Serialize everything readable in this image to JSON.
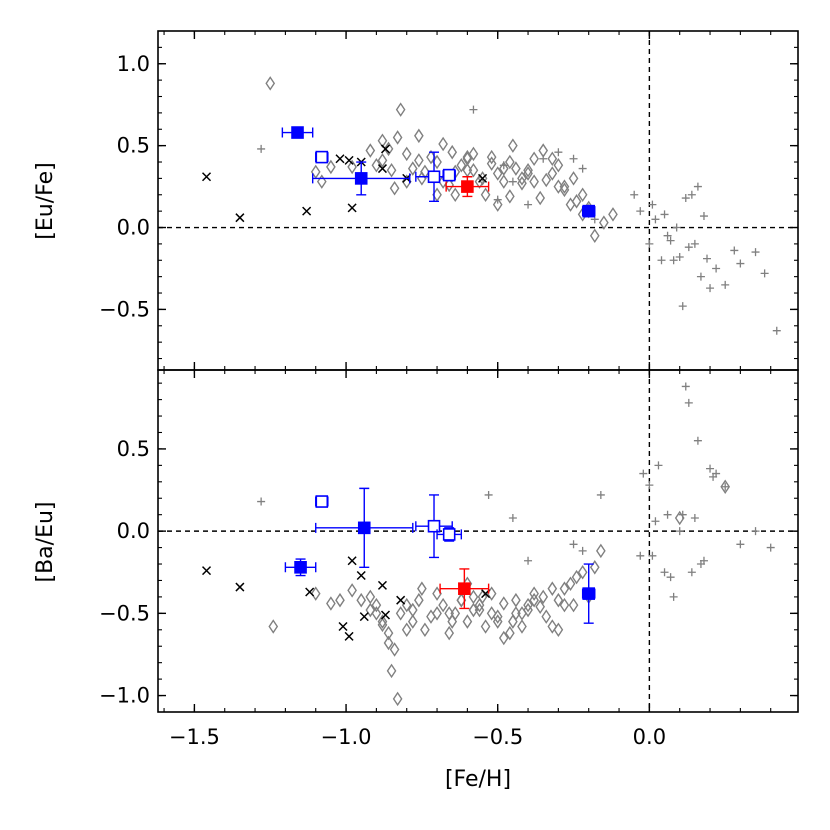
{
  "chart_data": {
    "type": "scatter",
    "xlabel": "[Fe/H]",
    "xlim": [
      -1.62,
      0.49
    ],
    "xticks": [
      -1.5,
      -1.0,
      -0.5,
      0.0
    ],
    "xtick_labels": [
      "−1.5",
      "−1.0",
      "−0.5",
      "0.0"
    ],
    "panels": [
      {
        "id": "top",
        "ylabel": "[Eu/Fe]",
        "ylim": [
          -0.87,
          1.2
        ],
        "yticks": [
          -0.5,
          0.0,
          0.5,
          1.0
        ],
        "ytick_labels": [
          "−0.5",
          "0.0",
          "0.5",
          "1.0"
        ],
        "series": [
          {
            "name": "grey-diamonds",
            "marker": "diamond",
            "color": "#808080",
            "x": [
              -1.25,
              -1.1,
              -1.08,
              -1.05,
              -0.98,
              -0.95,
              -0.92,
              -0.88,
              -0.85,
              -0.8,
              -0.83,
              -0.78,
              -0.75,
              -0.72,
              -0.7,
              -0.68,
              -0.65,
              -0.62,
              -0.6,
              -0.58,
              -0.55,
              -0.52,
              -0.5,
              -0.48,
              -0.45,
              -0.42,
              -0.4,
              -0.38,
              -0.35,
              -0.32,
              -0.3,
              -0.28,
              -0.25,
              -0.22,
              -0.2,
              -0.18,
              -0.15,
              -0.12,
              -0.88,
              -0.82,
              -0.8,
              -0.76,
              -0.7,
              -0.66,
              -0.6,
              -0.56,
              -0.5,
              -0.46,
              -0.42,
              -0.36,
              -0.3,
              -0.26,
              -0.22,
              -0.9,
              -0.86,
              -0.84,
              -0.76,
              -0.68,
              -0.64,
              -0.58,
              -0.54,
              -0.44,
              -0.38,
              -0.32,
              -0.28,
              -0.64,
              -0.52,
              -0.48,
              -0.4,
              -0.34,
              -0.24,
              -0.2,
              -0.6,
              -0.46,
              -0.74
            ],
            "y": [
              0.88,
              0.34,
              0.28,
              0.37,
              0.37,
              0.3,
              0.47,
              0.41,
              0.35,
              0.45,
              0.55,
              0.36,
              0.3,
              0.43,
              0.4,
              0.28,
              0.46,
              0.38,
              0.42,
              0.35,
              0.3,
              0.39,
              0.33,
              0.36,
              0.5,
              0.27,
              0.35,
              0.42,
              0.47,
              0.33,
              0.38,
              0.25,
              0.3,
              0.2,
              0.12,
              -0.05,
              0.03,
              0.08,
              0.53,
              0.72,
              0.28,
              0.56,
              0.2,
              0.26,
              0.43,
              0.28,
              0.14,
              0.4,
              0.3,
              0.18,
              0.25,
              0.14,
              0.08,
              0.38,
              0.48,
              0.24,
              0.41,
              0.51,
              0.2,
              0.45,
              0.2,
              0.36,
              0.28,
              0.42,
              0.23,
              0.34,
              0.43,
              0.28,
              0.33,
              0.29,
              0.16,
              0.1,
              0.35,
              0.19,
              0.34
            ]
          },
          {
            "name": "grey-plus",
            "marker": "plus",
            "color": "#808080",
            "x": [
              -1.28,
              -0.58,
              -0.5,
              -0.48,
              -0.45,
              -0.4,
              -0.35,
              -0.3,
              -0.25,
              -0.22,
              -0.18,
              -0.05,
              0.0,
              0.02,
              0.05,
              0.06,
              0.08,
              0.1,
              0.12,
              0.13,
              0.14,
              0.15,
              0.16,
              0.18,
              0.2,
              0.22,
              0.25,
              0.28,
              0.3,
              0.35,
              0.38,
              0.42,
              -0.03,
              0.01,
              0.07,
              0.17,
              0.11,
              0.19,
              0.04,
              0.09
            ],
            "y": [
              0.48,
              0.72,
              0.17,
              0.38,
              0.28,
              0.14,
              0.42,
              0.46,
              0.42,
              0.36,
              0.05,
              0.2,
              -0.1,
              0.05,
              0.08,
              -0.05,
              -0.2,
              -0.18,
              0.18,
              -0.12,
              0.2,
              -0.1,
              0.25,
              0.07,
              -0.37,
              -0.25,
              -0.35,
              -0.14,
              -0.22,
              -0.15,
              -0.28,
              -0.63,
              0.1,
              0.14,
              -0.08,
              -0.3,
              -0.48,
              -0.19,
              -0.2,
              0.0
            ]
          },
          {
            "name": "black-cross",
            "marker": "x",
            "color": "#000000",
            "x": [
              -1.46,
              -1.35,
              -1.13,
              -1.02,
              -0.99,
              -0.98,
              -0.95,
              -0.88,
              -0.87,
              -0.8,
              -0.55
            ],
            "y": [
              0.31,
              0.06,
              0.1,
              0.42,
              0.41,
              0.12,
              0.4,
              0.36,
              0.48,
              0.3,
              0.3
            ]
          },
          {
            "name": "blue-filled",
            "marker": "square-filled",
            "color": "#0000ff",
            "points": [
              {
                "x": -1.16,
                "y": 0.58,
                "xerr": 0.05,
                "yerr": 0.03
              },
              {
                "x": -0.95,
                "y": 0.3,
                "xerr": 0.16,
                "yerr": 0.1
              },
              {
                "x": -0.2,
                "y": 0.1,
                "xerr": 0.02,
                "yerr": 0.02
              }
            ]
          },
          {
            "name": "blue-open",
            "marker": "square-open",
            "color": "#0000ff",
            "points": [
              {
                "x": -1.08,
                "y": 0.43,
                "xerr": 0.02,
                "yerr": 0.02
              },
              {
                "x": -0.71,
                "y": 0.31,
                "xerr": 0.06,
                "yerr": 0.15
              },
              {
                "x": -0.66,
                "y": 0.32,
                "xerr": 0.02,
                "yerr": 0.02
              }
            ]
          },
          {
            "name": "red-filled",
            "marker": "square-filled",
            "color": "#ff0000",
            "points": [
              {
                "x": -0.6,
                "y": 0.25,
                "xerr": 0.07,
                "yerr": 0.06
              }
            ]
          }
        ]
      },
      {
        "id": "bottom",
        "ylabel": "[Ba/Eu]",
        "ylim": [
          -1.1,
          0.98
        ],
        "yticks": [
          -1.0,
          -0.5,
          0.0,
          0.5
        ],
        "ytick_labels": [
          "−1.0",
          "−0.5",
          "0.0",
          "0.5"
        ],
        "series": [
          {
            "name": "grey-diamonds",
            "marker": "diamond",
            "color": "#808080",
            "x": [
              -1.24,
              -1.1,
              -1.05,
              -1.02,
              -0.98,
              -0.95,
              -0.92,
              -0.9,
              -0.88,
              -0.86,
              -0.84,
              -0.82,
              -0.8,
              -0.78,
              -0.76,
              -0.74,
              -0.72,
              -0.7,
              -0.68,
              -0.66,
              -0.64,
              -0.62,
              -0.6,
              -0.58,
              -0.56,
              -0.54,
              -0.52,
              -0.5,
              -0.48,
              -0.46,
              -0.44,
              -0.42,
              -0.4,
              -0.38,
              -0.36,
              -0.34,
              -0.32,
              -0.3,
              -0.28,
              -0.26,
              -0.24,
              -0.22,
              -0.2,
              -0.18,
              -0.16,
              -0.85,
              -0.83,
              -0.86,
              -0.9,
              -0.8,
              -0.75,
              -0.7,
              -0.65,
              -0.62,
              -0.58,
              -0.55,
              -0.5,
              -0.45,
              -0.4,
              -0.35,
              -0.3,
              -0.25,
              -0.6,
              -0.52,
              -0.48,
              -0.42,
              -0.38,
              -0.32,
              -0.28,
              0.25,
              0.1,
              -0.92,
              -0.88,
              -0.78,
              -0.66,
              -0.56,
              -0.44
            ],
            "y": [
              -0.58,
              -0.38,
              -0.44,
              -0.42,
              -0.36,
              -0.42,
              -0.48,
              -0.5,
              -0.57,
              -0.62,
              -0.72,
              -0.5,
              -0.45,
              -0.55,
              -0.42,
              -0.6,
              -0.52,
              -0.5,
              -0.45,
              -0.5,
              -0.5,
              -0.42,
              -0.55,
              -0.4,
              -0.48,
              -0.58,
              -0.5,
              -0.55,
              -0.44,
              -0.62,
              -0.5,
              -0.58,
              -0.45,
              -0.38,
              -0.46,
              -0.52,
              -0.35,
              -0.42,
              -0.45,
              -0.32,
              -0.28,
              -0.25,
              -0.4,
              -0.22,
              -0.12,
              -0.85,
              -1.02,
              -0.68,
              -0.45,
              -0.6,
              -0.35,
              -0.38,
              -0.55,
              -0.42,
              -0.48,
              -0.4,
              -0.52,
              -0.55,
              -0.48,
              -0.4,
              -0.6,
              -0.45,
              -0.32,
              -0.38,
              -0.65,
              -0.5,
              -0.42,
              -0.58,
              -0.35,
              0.27,
              0.08,
              -0.4,
              -0.55,
              -0.48,
              -0.62,
              -0.45,
              -0.42
            ]
          },
          {
            "name": "grey-plus",
            "marker": "plus",
            "color": "#808080",
            "x": [
              -1.28,
              -0.53,
              -0.45,
              -0.4,
              -0.25,
              -0.22,
              -0.16,
              -0.03,
              -0.02,
              0.0,
              0.02,
              0.05,
              0.06,
              0.08,
              0.1,
              0.12,
              0.13,
              0.14,
              0.15,
              0.16,
              0.18,
              0.2,
              0.22,
              0.25,
              0.3,
              0.35,
              0.4,
              0.11,
              0.17,
              0.07,
              0.01,
              0.03,
              0.21
            ],
            "y": [
              0.18,
              0.22,
              0.08,
              -0.18,
              -0.08,
              -0.12,
              0.22,
              -0.15,
              0.35,
              0.28,
              0.06,
              -0.25,
              0.1,
              -0.4,
              0.0,
              0.88,
              0.78,
              -0.25,
              0.08,
              0.55,
              -0.18,
              0.38,
              0.35,
              0.27,
              -0.08,
              0.0,
              -0.1,
              0.1,
              -0.2,
              -0.28,
              -0.15,
              0.4,
              0.33
            ]
          },
          {
            "name": "black-cross",
            "marker": "x",
            "color": "#000000",
            "x": [
              -1.46,
              -1.35,
              -1.12,
              -1.01,
              -0.99,
              -0.98,
              -0.95,
              -0.94,
              -0.88,
              -0.87,
              -0.82,
              -0.54
            ],
            "y": [
              -0.24,
              -0.34,
              -0.37,
              -0.58,
              -0.64,
              -0.18,
              -0.27,
              -0.52,
              -0.33,
              -0.51,
              -0.42,
              -0.38
            ]
          },
          {
            "name": "blue-filled",
            "marker": "square-filled",
            "color": "#0000ff",
            "points": [
              {
                "x": -1.15,
                "y": -0.22,
                "xerr": 0.05,
                "yerr": 0.05
              },
              {
                "x": -0.94,
                "y": 0.02,
                "xerr": 0.16,
                "yerr": 0.24
              },
              {
                "x": -0.2,
                "y": -0.38,
                "xerr": 0.02,
                "yerr": 0.18
              }
            ]
          },
          {
            "name": "blue-open",
            "marker": "square-open",
            "color": "#0000ff",
            "points": [
              {
                "x": -1.08,
                "y": 0.18,
                "xerr": 0.02,
                "yerr": 0.02
              },
              {
                "x": -0.71,
                "y": 0.03,
                "xerr": 0.06,
                "yerr": 0.19
              },
              {
                "x": -0.66,
                "y": -0.02,
                "xerr": 0.04,
                "yerr": 0.04
              }
            ]
          },
          {
            "name": "red-filled",
            "marker": "square-filled",
            "color": "#ff0000",
            "points": [
              {
                "x": -0.61,
                "y": -0.35,
                "xerr": 0.08,
                "yerr": 0.12
              }
            ]
          }
        ]
      }
    ]
  }
}
